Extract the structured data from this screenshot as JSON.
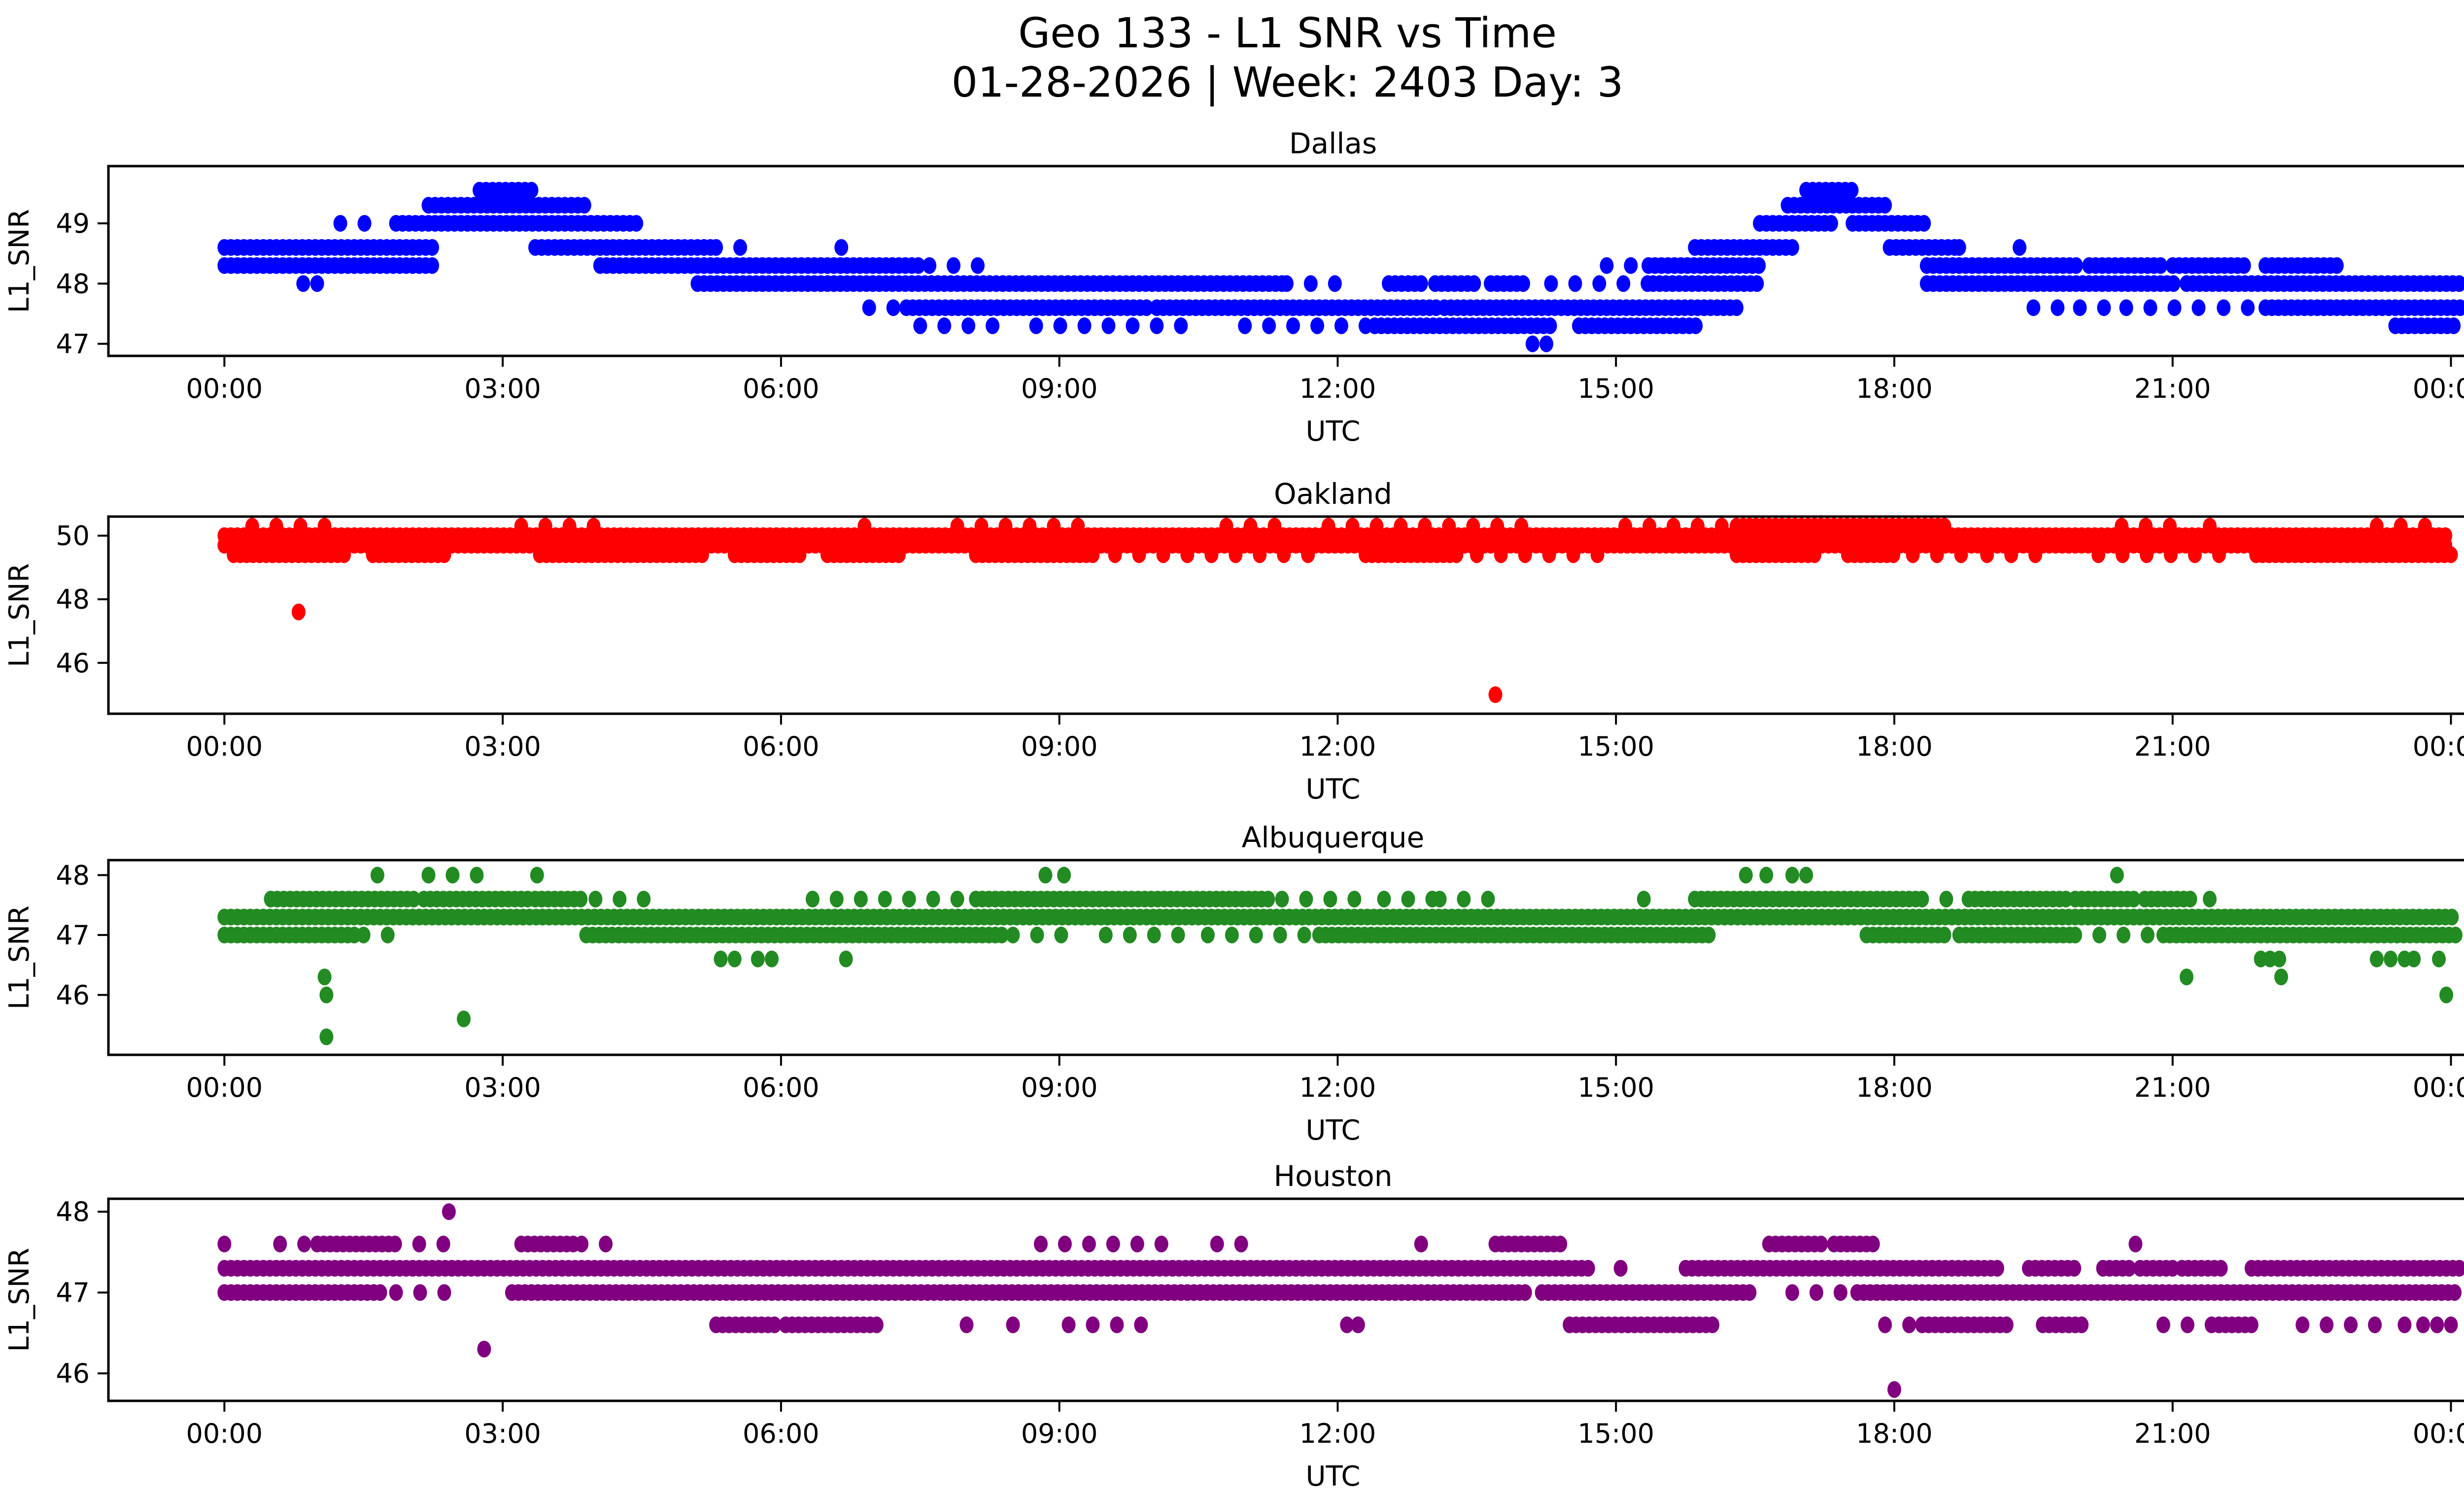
{
  "header": {
    "title": "Geo 133 - L1 SNR vs Time",
    "subtitle": "01-28-2026 | Week: 2403 Day: 3"
  },
  "axis": {
    "xlabel": "UTC",
    "ylabel": "L1_SNR",
    "xtick_hours": [
      0,
      3,
      6,
      9,
      12,
      15,
      18,
      21,
      24
    ],
    "xtick_labels": [
      "00:00",
      "03:00",
      "06:00",
      "09:00",
      "12:00",
      "15:00",
      "18:00",
      "21:00",
      "00:00"
    ],
    "xlim": [
      -1.25,
      25.15
    ]
  },
  "chart_data": [
    {
      "type": "scatter",
      "title": "Dallas",
      "color": "#0000ff",
      "xlabel": "UTC",
      "ylabel": "L1_SNR",
      "yticks": [
        47,
        48,
        49
      ],
      "ylim": [
        46.8,
        49.95
      ],
      "grid": false,
      "legend": null,
      "levels": [
        {
          "snr": 49.55,
          "solid": [
            [
              2.75,
              3.35
            ],
            [
              17.05,
              17.6
            ]
          ],
          "sparse": [],
          "dots": []
        },
        {
          "snr": 49.3,
          "solid": [
            [
              2.2,
              3.9
            ],
            [
              16.85,
              17.9
            ]
          ],
          "sparse": [],
          "dots": []
        },
        {
          "snr": 49.0,
          "solid": [
            [
              1.85,
              4.45
            ],
            [
              16.55,
              17.35
            ],
            [
              17.55,
              18.35
            ]
          ],
          "sparse": [
            [
              1.25,
              1.6
            ]
          ],
          "dots": []
        },
        {
          "snr": 48.6,
          "solid": [
            [
              0.0,
              2.3
            ],
            [
              3.35,
              5.25
            ],
            [
              15.85,
              16.95
            ],
            [
              17.95,
              18.7
            ]
          ],
          "sparse": [
            [
              5.3,
              5.8
            ],
            [
              18.7,
              18.9
            ]
          ],
          "dots": [
            6.65,
            19.35
          ]
        },
        {
          "snr": 48.3,
          "solid": [
            [
              0.0,
              2.3
            ],
            [
              4.05,
              7.5
            ],
            [
              15.35,
              16.6
            ],
            [
              18.35,
              20.0
            ],
            [
              20.1,
              20.9
            ],
            [
              21.0,
              21.8
            ],
            [
              22.0,
              22.8
            ]
          ],
          "sparse": [
            [
              7.6,
              8.3
            ],
            [
              14.9,
              15.35
            ]
          ],
          "dots": []
        },
        {
          "snr": 48.0,
          "solid": [
            [
              5.1,
              11.4
            ],
            [
              12.55,
              12.9
            ],
            [
              13.05,
              13.5
            ],
            [
              13.65,
              14.05
            ],
            [
              15.4,
              16.55
            ],
            [
              18.35,
              21.05
            ],
            [
              21.15,
              24.1
            ]
          ],
          "sparse": [
            [
              11.45,
              12.0
            ],
            [
              14.3,
              15.4
            ]
          ],
          "dots": [
            0.85,
            1.0
          ]
        },
        {
          "snr": 47.6,
          "solid": [
            [
              7.35,
              10.0
            ],
            [
              10.05,
              13.1
            ],
            [
              13.15,
              16.3
            ],
            [
              22.0,
              24.1
            ]
          ],
          "sparse": [
            [
              6.95,
              7.35
            ],
            [
              19.5,
              19.85
            ],
            [
              20.0,
              20.4
            ],
            [
              20.5,
              21.5
            ],
            [
              21.55,
              21.95
            ]
          ],
          "dots": []
        },
        {
          "snr": 47.3,
          "solid": [
            [
              12.4,
              14.35
            ],
            [
              14.6,
              15.9
            ],
            [
              23.4,
              24.05
            ]
          ],
          "sparse": [
            [
              7.5,
              8.5
            ],
            [
              8.75,
              10.5
            ],
            [
              11.0,
              12.3
            ]
          ],
          "dots": []
        },
        {
          "snr": 47.0,
          "solid": [],
          "sparse": [],
          "dots": [
            14.1,
            14.25
          ]
        }
      ]
    },
    {
      "type": "scatter",
      "title": "Oakland",
      "color": "#ff0000",
      "xlabel": "UTC",
      "ylabel": "L1_SNR",
      "yticks": [
        46,
        48,
        50
      ],
      "ylim": [
        44.4,
        50.6
      ],
      "grid": false,
      "legend": null,
      "levels": [
        {
          "snr": 50.3,
          "solid": [
            [
              16.3,
              18.6
            ]
          ],
          "sparse": [
            [
              0.3,
              1.1
            ],
            [
              3.2,
              4.1
            ],
            [
              6.9,
              7.1
            ],
            [
              7.9,
              9.3
            ],
            [
              10.8,
              11.4
            ],
            [
              11.9,
              14.0
            ],
            [
              15.1,
              16.2
            ],
            [
              20.45,
              21.2
            ],
            [
              21.4,
              21.6
            ],
            [
              23.2,
              23.9
            ]
          ],
          "dots": []
        },
        {
          "snr": 50.0,
          "solid": [
            [
              0.0,
              24.0
            ]
          ],
          "sparse": [],
          "dots": []
        },
        {
          "snr": 49.7,
          "solid": [
            [
              0.0,
              24.0
            ]
          ],
          "sparse": [],
          "dots": []
        },
        {
          "snr": 49.4,
          "solid": [
            [
              0.1,
              1.3
            ],
            [
              1.6,
              2.4
            ],
            [
              3.4,
              5.2
            ],
            [
              5.5,
              6.2
            ],
            [
              6.5,
              7.3
            ],
            [
              8.1,
              9.4
            ],
            [
              12.3,
              13.3
            ],
            [
              16.3,
              17.2
            ],
            [
              17.5,
              18.0
            ],
            [
              21.9,
              24.0
            ]
          ],
          "sparse": [
            [
              9.6,
              11.8
            ],
            [
              13.5,
              15.0
            ],
            [
              18.2,
              18.9
            ],
            [
              19.0,
              19.6
            ],
            [
              20.2,
              21.5
            ]
          ],
          "dots": []
        },
        {
          "snr": 47.6,
          "solid": [],
          "sparse": [],
          "dots": [
            0.8
          ]
        },
        {
          "snr": 45.0,
          "solid": [],
          "sparse": [],
          "dots": [
            13.7
          ]
        }
      ]
    },
    {
      "type": "scatter",
      "title": "Albuquerque",
      "color": "#228B22",
      "xlabel": "UTC",
      "ylabel": "L1_SNR",
      "yticks": [
        46,
        47,
        48
      ],
      "ylim": [
        45.0,
        48.25
      ],
      "grid": false,
      "legend": null,
      "levels": [
        {
          "snr": 48.0,
          "solid": [],
          "sparse": [
            [
              2.2,
              2.95
            ]
          ],
          "dots": [
            1.65,
            3.37,
            8.85,
            9.05,
            16.4,
            16.62,
            16.9,
            17.05,
            20.4
          ]
        },
        {
          "snr": 47.6,
          "solid": [
            [
              0.5,
              2.1
            ],
            [
              2.15,
              3.3
            ],
            [
              3.35,
              3.9
            ],
            [
              8.1,
              11.3
            ],
            [
              15.85,
              18.25
            ],
            [
              18.8,
              19.9
            ],
            [
              19.95,
              20.6
            ],
            [
              20.7,
              21.2
            ]
          ],
          "sparse": [
            [
              4.0,
              4.6
            ],
            [
              6.6,
              8.0
            ],
            [
              11.4,
              12.3
            ],
            [
              12.5,
              13.05
            ],
            [
              13.1,
              13.75
            ],
            [
              18.3,
              18.7
            ]
          ],
          "dots": [
            6.34,
            15.3,
            21.4
          ]
        },
        {
          "snr": 47.3,
          "solid": [
            [
              0.0,
              24.05
            ]
          ],
          "sparse": [],
          "dots": []
        },
        {
          "snr": 47.0,
          "solid": [
            [
              0.0,
              1.45
            ],
            [
              3.9,
              6.3
            ],
            [
              6.35,
              8.4
            ],
            [
              11.8,
              16.05
            ],
            [
              17.7,
              18.6
            ],
            [
              18.7,
              19.9
            ],
            [
              20.9,
              24.05
            ]
          ],
          "sparse": [
            [
              1.5,
              1.85
            ],
            [
              8.5,
              9.2
            ],
            [
              9.5,
              10.35
            ],
            [
              10.6,
              11.75
            ],
            [
              19.95,
              20.85
            ]
          ],
          "dots": []
        },
        {
          "snr": 46.6,
          "solid": [],
          "sparse": [],
          "dots": [
            5.35,
            5.5,
            5.75,
            5.9,
            6.7,
            21.95,
            22.05,
            22.15,
            23.2,
            23.35,
            23.5,
            23.6,
            23.87
          ]
        },
        {
          "snr": 46.3,
          "solid": [],
          "sparse": [],
          "dots": [
            1.08,
            21.15,
            22.17
          ]
        },
        {
          "snr": 46.0,
          "solid": [],
          "sparse": [],
          "dots": [
            1.1,
            23.95
          ]
        },
        {
          "snr": 45.6,
          "solid": [],
          "sparse": [],
          "dots": [
            2.58
          ]
        },
        {
          "snr": 45.3,
          "solid": [],
          "sparse": [],
          "dots": [
            1.1
          ]
        }
      ]
    },
    {
      "type": "scatter",
      "title": "Houston",
      "color": "#800080",
      "xlabel": "UTC",
      "ylabel": "L1_SNR",
      "yticks": [
        46,
        47,
        48
      ],
      "ylim": [
        45.66,
        48.16
      ],
      "grid": false,
      "legend": null,
      "levels": [
        {
          "snr": 48.0,
          "solid": [],
          "sparse": [],
          "dots": [
            2.42
          ]
        },
        {
          "snr": 47.6,
          "solid": [
            [
              1.0,
              1.85
            ],
            [
              3.2,
              3.8
            ],
            [
              13.7,
              14.4
            ],
            [
              16.65,
              17.25
            ],
            [
              17.35,
              17.8
            ]
          ],
          "sparse": [
            [
              0.0,
              0.12
            ],
            [
              0.6,
              0.9
            ],
            [
              2.1,
              2.6
            ],
            [
              3.85,
              4.15
            ],
            [
              8.8,
              10.1
            ],
            [
              10.7,
              11.1
            ],
            [
              12.9,
              13.0
            ],
            [
              20.6,
              20.8
            ]
          ],
          "dots": []
        },
        {
          "snr": 47.3,
          "solid": [
            [
              0.0,
              14.7
            ],
            [
              15.75,
              18.5
            ],
            [
              18.55,
              19.15
            ],
            [
              19.45,
              19.95
            ],
            [
              20.25,
              20.55
            ],
            [
              20.65,
              21.0
            ],
            [
              21.1,
              21.55
            ],
            [
              21.85,
              24.1
            ]
          ],
          "sparse": [],
          "dots": [
            15.05
          ]
        },
        {
          "snr": 47.0,
          "solid": [
            [
              0.0,
              1.7
            ],
            [
              3.1,
              14.05
            ],
            [
              14.2,
              16.5
            ],
            [
              17.6,
              24.1
            ]
          ],
          "sparse": [
            [
              1.85,
              2.45
            ],
            [
              16.9,
              17.55
            ]
          ],
          "dots": []
        },
        {
          "snr": 46.6,
          "solid": [
            [
              5.3,
              5.95
            ],
            [
              6.05,
              7.05
            ],
            [
              14.5,
              16.1
            ],
            [
              18.3,
              19.25
            ],
            [
              19.6,
              20.05
            ],
            [
              21.5,
              21.85
            ]
          ],
          "sparse": [
            [
              9.1,
              9.95
            ],
            [
              17.9,
              18.2
            ],
            [
              20.9,
              21.5
            ],
            [
              22.4,
              23.2
            ]
          ],
          "dots": [
            8.0,
            8.5,
            12.1,
            12.22,
            23.5,
            23.7,
            23.85,
            24.0
          ]
        },
        {
          "snr": 46.3,
          "solid": [],
          "sparse": [],
          "dots": [
            2.8
          ]
        },
        {
          "snr": 45.8,
          "solid": [],
          "sparse": [],
          "dots": [
            18.0
          ]
        }
      ]
    }
  ]
}
